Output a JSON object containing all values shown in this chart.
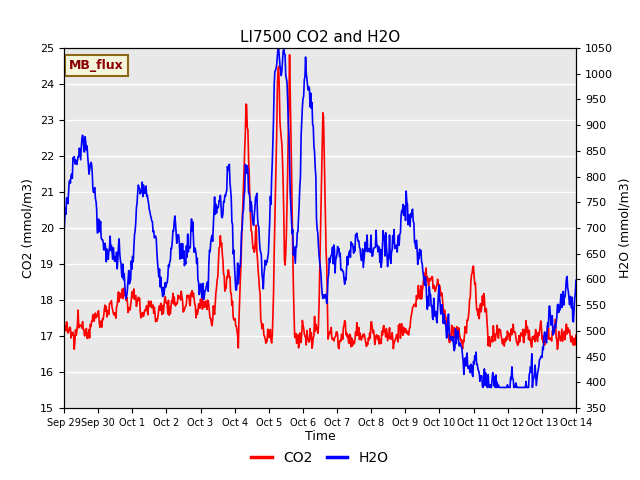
{
  "title": "LI7500 CO2 and H2O",
  "xlabel": "Time",
  "ylabel_left": "CO2 (mmol/m3)",
  "ylabel_right": "H2O (mmol/m3)",
  "ylim_left": [
    15.0,
    25.0
  ],
  "ylim_right": [
    350,
    1050
  ],
  "yticks_left": [
    15.0,
    16.0,
    17.0,
    18.0,
    19.0,
    20.0,
    21.0,
    22.0,
    23.0,
    24.0,
    25.0
  ],
  "yticks_right": [
    350,
    400,
    450,
    500,
    550,
    600,
    650,
    700,
    750,
    800,
    850,
    900,
    950,
    1000,
    1050
  ],
  "xtick_labels": [
    "Sep 29",
    "Sep 30",
    "Oct 1",
    "Oct 2",
    "Oct 3",
    "Oct 4",
    "Oct 5",
    "Oct 6",
    "Oct 7",
    "Oct 8",
    "Oct 9",
    "Oct 10",
    "Oct 11",
    "Oct 12",
    "Oct 13",
    "Oct 14"
  ],
  "co2_color": "#FF0000",
  "h2o_color": "#0000FF",
  "background_color": "#E8E8E8",
  "figure_background": "#FFFFFF",
  "legend_box_color": "#F5F5DC",
  "legend_box_edge": "#8B6914",
  "legend_text": "MB_flux",
  "legend_text_color": "#8B0000",
  "grid_color": "#FFFFFF",
  "title_fontsize": 11,
  "axis_label_fontsize": 9,
  "tick_fontsize": 8,
  "legend_fontsize": 9,
  "linewidth": 1.2,
  "num_points": 800
}
